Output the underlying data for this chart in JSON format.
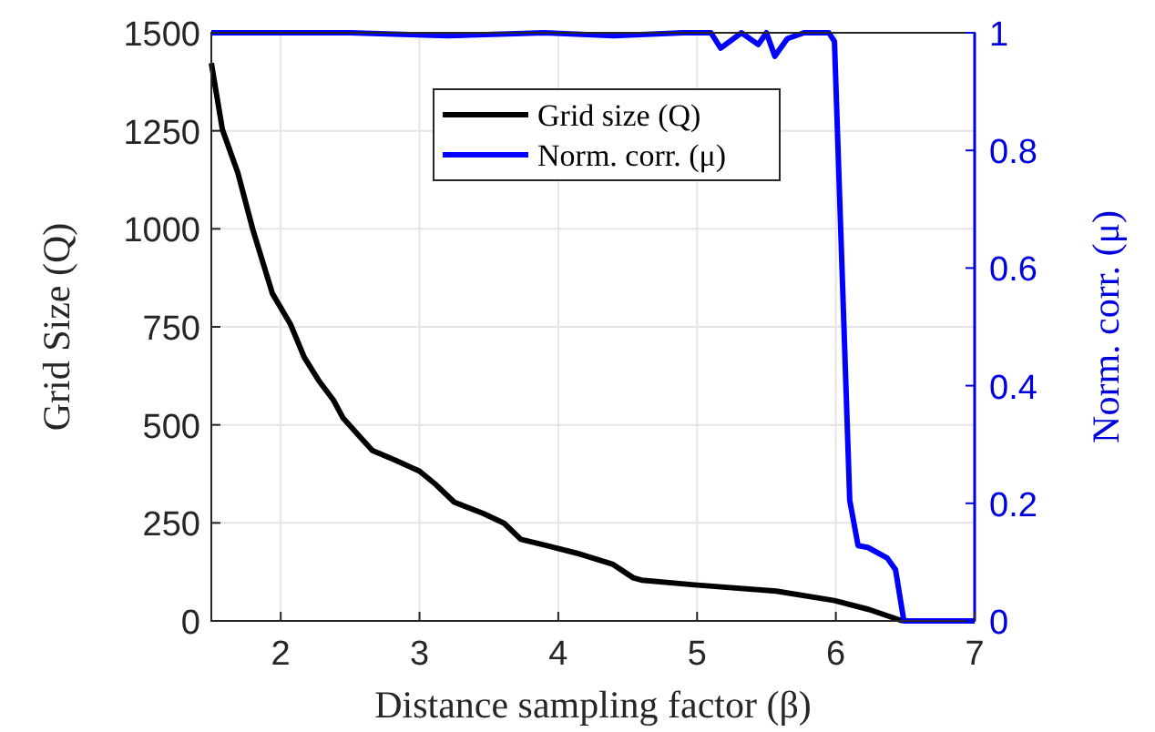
{
  "chart_data": {
    "type": "line",
    "xlabel": "Distance sampling factor (β)",
    "ylabel": "Grid Size (Q)",
    "y2label": "Norm. corr. (μ)",
    "xlim": [
      1.5,
      7
    ],
    "xticks": [
      2,
      3,
      4,
      5,
      6,
      7
    ],
    "ylim": [
      0,
      1500
    ],
    "yticks": [
      0,
      250,
      500,
      750,
      1000,
      1250,
      1500
    ],
    "y2lim": [
      0,
      1
    ],
    "y2ticks": [
      0,
      0.2,
      0.4,
      0.6,
      0.8,
      1
    ],
    "grid": true,
    "legend": "top",
    "line_style": "solid",
    "marker": "none",
    "series": [
      {
        "name": "Grid size (Q)",
        "color": "#000000",
        "x": [
          1.5,
          1.58,
          1.69,
          1.8,
          1.94,
          2.07,
          2.17,
          2.28,
          2.38,
          2.45,
          2.55,
          2.66,
          2.83,
          3.0,
          3.12,
          3.25,
          3.46,
          3.61,
          3.73,
          3.92,
          4.13,
          4.39,
          4.54,
          4.6,
          4.98,
          5.57,
          5.99,
          6.24,
          6.48
        ],
        "values": [
          1423,
          1253,
          1144,
          997,
          835,
          757,
          672,
          610,
          563,
          517,
          478,
          435,
          409,
          382,
          347,
          303,
          274,
          249,
          208,
          192,
          173,
          145,
          110,
          104,
          92,
          76,
          52,
          29,
          0
        ]
      },
      {
        "name": "Norm. corr. (μ)",
        "color": "#0000ff",
        "axis": "y2",
        "x": [
          1.5,
          2.5,
          3.2,
          3.9,
          4.4,
          4.9,
          5.1,
          5.17,
          5.32,
          5.44,
          5.5,
          5.56,
          5.65,
          5.77,
          5.95,
          5.99,
          6.1,
          6.16,
          6.23,
          6.37,
          6.43,
          6.49,
          7.0
        ],
        "values": [
          1,
          1,
          0.995,
          1,
          0.995,
          1,
          1,
          0.974,
          1,
          0.98,
          1,
          0.96,
          0.99,
          1,
          1,
          0.985,
          0.205,
          0.128,
          0.125,
          0.107,
          0.087,
          0,
          0
        ]
      }
    ]
  }
}
